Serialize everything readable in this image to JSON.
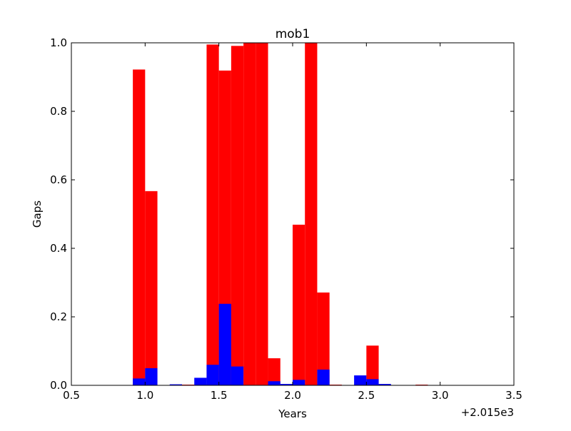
{
  "chart_data": {
    "type": "bar",
    "title": "mob1",
    "xlabel": "Years",
    "ylabel": "Gaps",
    "x_offset_label": "+2.015e3",
    "xlim": [
      0.5,
      3.5
    ],
    "ylim": [
      0.0,
      1.0
    ],
    "xticks": [
      0.5,
      1.0,
      1.5,
      2.0,
      2.5,
      3.0,
      3.5
    ],
    "xtick_labels": [
      "0.5",
      "1.0",
      "1.5",
      "2.0",
      "2.5",
      "3.0",
      "3.5"
    ],
    "yticks": [
      0.0,
      0.2,
      0.4,
      0.6,
      0.8,
      1.0
    ],
    "ytick_labels": [
      "0.0",
      "0.2",
      "0.4",
      "0.6",
      "0.8",
      "1.0"
    ],
    "grid": false,
    "bar_width": 0.0833,
    "series": [
      {
        "color": "#ff0000",
        "x": [
          0.9167,
          1.0,
          1.25,
          1.4167,
          1.5,
          1.5833,
          1.6667,
          1.75,
          1.8333,
          2.0,
          2.0833,
          2.1667,
          2.25,
          2.5,
          2.8333
        ],
        "values": [
          0.922,
          0.567,
          0.002,
          0.995,
          0.919,
          0.991,
          1.0,
          1.0,
          0.079,
          0.469,
          1.0,
          0.271,
          0.002,
          0.116,
          0.002
        ]
      },
      {
        "color": "#0000ff",
        "x": [
          0.9167,
          1.0,
          1.0833,
          1.1667,
          1.25,
          1.3333,
          1.4167,
          1.5,
          1.5833,
          1.6667,
          1.75,
          1.8333,
          1.9167,
          2.0,
          2.0833,
          2.1667,
          2.25,
          2.3333,
          2.4167,
          2.5,
          2.5833,
          2.6667,
          2.75,
          2.8333,
          2.9167
        ],
        "values": [
          0.02,
          0.05,
          0.0,
          0.003,
          0.0,
          0.022,
          0.06,
          0.238,
          0.055,
          0.0,
          0.0,
          0.012,
          0.004,
          0.016,
          0.0,
          0.046,
          0.0,
          0.0,
          0.029,
          0.018,
          0.004,
          0.0,
          0.0,
          0.0,
          0.0
        ]
      }
    ]
  }
}
